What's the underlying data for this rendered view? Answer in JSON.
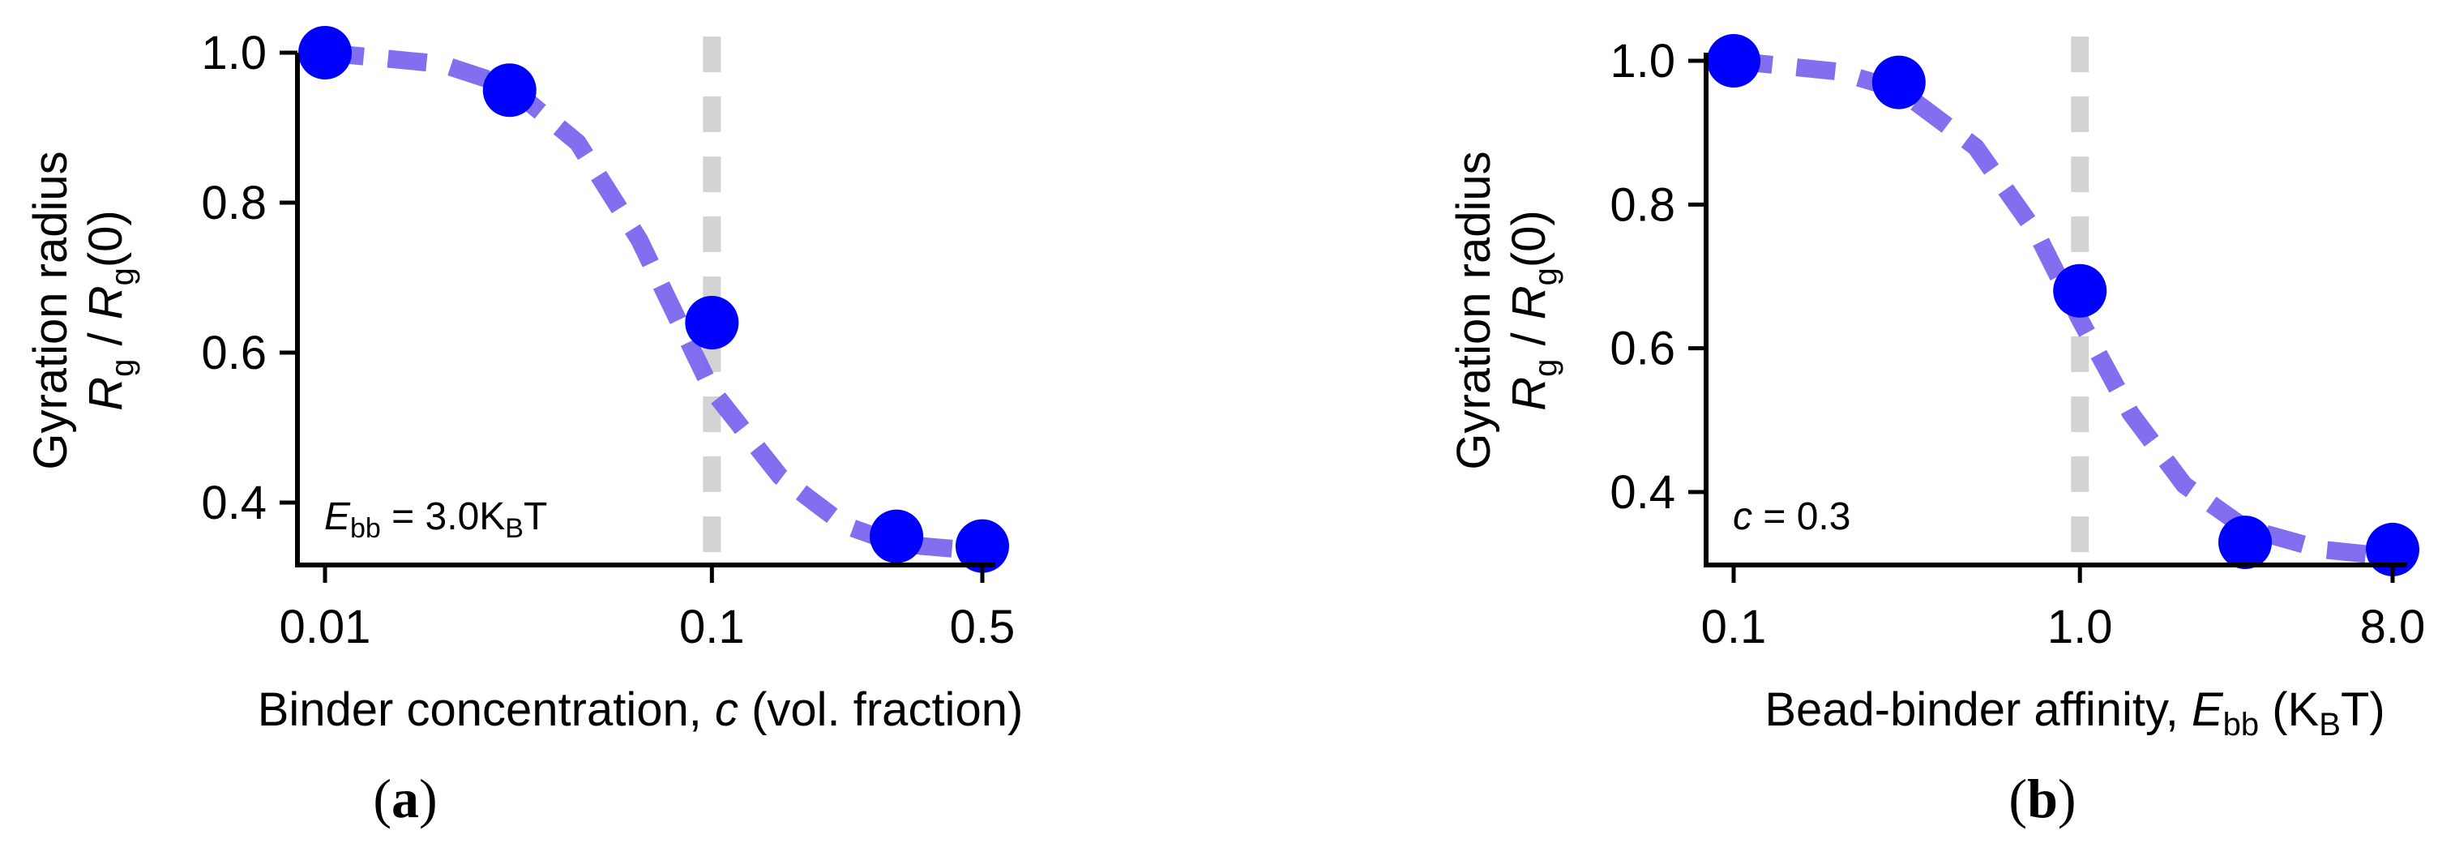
{
  "colors": {
    "points": "#0000ff",
    "fit_curve": "#7b67ee",
    "reference_line": "#d3d3d3",
    "axis": "#000000"
  },
  "chart_data": [
    {
      "type": "scatter",
      "panel": "a",
      "panel_label": {
        "open": "(",
        "letter": "a",
        "close": ")"
      },
      "x_scale": "log",
      "xlim": [
        0.008,
        0.55
      ],
      "ylim": [
        0.3,
        1.02
      ],
      "xticks": [
        0.01,
        0.1,
        0.5
      ],
      "xtick_labels": [
        "0.01",
        "0.1",
        "0.5"
      ],
      "yticks": [
        0.4,
        0.6,
        0.8,
        1.0
      ],
      "ytick_labels": [
        "0.4",
        "0.6",
        "0.8",
        "1.0"
      ],
      "ylabel": {
        "line1": "Gyration radius",
        "r1": "R",
        "sub1": "g",
        "mid": " / ",
        "r2": "R",
        "sub2": "g",
        "tail": "(0)"
      },
      "xlabel": {
        "prefix": "Binder concentration, ",
        "var": "c",
        "suffix": " (vol. fraction)"
      },
      "annotation": {
        "var": "E",
        "sub": "bb",
        "value": " = 3.0K",
        "unit_sub": "B",
        "unit_tail": "T"
      },
      "reference_line_x": 0.1,
      "points": [
        {
          "x": 0.01,
          "y": 1.0
        },
        {
          "x": 0.03,
          "y": 0.95
        },
        {
          "x": 0.1,
          "y": 0.64
        },
        {
          "x": 0.3,
          "y": 0.355
        },
        {
          "x": 0.5,
          "y": 0.342
        }
      ],
      "fit_curve": [
        {
          "x": 0.01,
          "y": 1.0
        },
        {
          "x": 0.02,
          "y": 0.985
        },
        {
          "x": 0.03,
          "y": 0.955
        },
        {
          "x": 0.045,
          "y": 0.88
        },
        {
          "x": 0.065,
          "y": 0.75
        },
        {
          "x": 0.1,
          "y": 0.55
        },
        {
          "x": 0.15,
          "y": 0.435
        },
        {
          "x": 0.22,
          "y": 0.37
        },
        {
          "x": 0.3,
          "y": 0.345
        },
        {
          "x": 0.5,
          "y": 0.335
        }
      ]
    },
    {
      "type": "scatter",
      "panel": "b",
      "panel_label": {
        "open": "(",
        "letter": "b",
        "close": ")"
      },
      "x_scale": "log",
      "xlim": [
        0.08,
        9.5
      ],
      "ylim": [
        0.28,
        1.02
      ],
      "xticks": [
        0.1,
        1.0,
        8.0
      ],
      "xtick_labels": [
        "0.1",
        "1.0",
        "8.0"
      ],
      "yticks": [
        0.4,
        0.6,
        0.8,
        1.0
      ],
      "ytick_labels": [
        "0.4",
        "0.6",
        "0.8",
        "1.0"
      ],
      "ylabel": {
        "line1": "Gyration radius",
        "r1": "R",
        "sub1": "g",
        "mid": " / ",
        "r2": "R",
        "sub2": "g",
        "tail": "(0)"
      },
      "xlabel": {
        "prefix": "Bead-binder affinity, ",
        "var": "E",
        "var_sub": "bb",
        "suffix": " (K",
        "unit_sub": "B",
        "unit_tail": "T)"
      },
      "annotation": {
        "var": "c",
        "value": " = 0.3"
      },
      "reference_line_x": 1.0,
      "points": [
        {
          "x": 0.1,
          "y": 1.0
        },
        {
          "x": 0.3,
          "y": 0.97
        },
        {
          "x": 1.0,
          "y": 0.68
        },
        {
          "x": 3.0,
          "y": 0.33
        },
        {
          "x": 8.0,
          "y": 0.32
        }
      ],
      "fit_curve": [
        {
          "x": 0.1,
          "y": 1.0
        },
        {
          "x": 0.2,
          "y": 0.985
        },
        {
          "x": 0.3,
          "y": 0.96
        },
        {
          "x": 0.5,
          "y": 0.88
        },
        {
          "x": 0.75,
          "y": 0.76
        },
        {
          "x": 1.0,
          "y": 0.64
        },
        {
          "x": 1.4,
          "y": 0.51
        },
        {
          "x": 2.0,
          "y": 0.41
        },
        {
          "x": 3.0,
          "y": 0.35
        },
        {
          "x": 5.0,
          "y": 0.32
        },
        {
          "x": 8.0,
          "y": 0.31
        }
      ]
    }
  ]
}
